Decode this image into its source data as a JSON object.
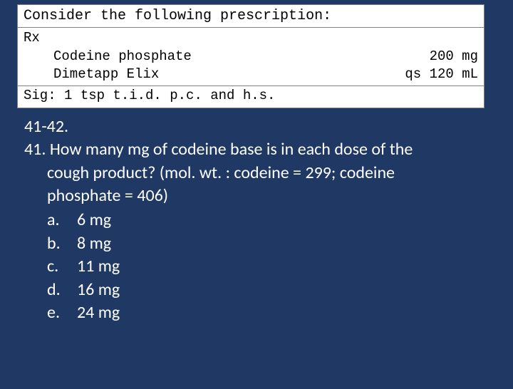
{
  "prescription": {
    "header": "Consider the following prescription:",
    "rx_label": "Rx",
    "ingredient1_name": "Codeine phosphate",
    "ingredient1_amount": "200 mg",
    "ingredient2_name": "Dimetapp Elix",
    "ingredient2_amount": "qs 120 mL",
    "sig": "Sig: 1 tsp t.i.d. p.c. and h.s."
  },
  "question": {
    "range": "41-42.",
    "stem_line1": "41. How many mg of codeine base is in each dose of the",
    "stem_line2": "cough product? (mol. wt. : codeine = 299; codeine",
    "stem_line3": "phosphate = 406)",
    "options": [
      {
        "letter": "a.",
        "text": "6 mg"
      },
      {
        "letter": "b.",
        "text": "8 mg"
      },
      {
        "letter": "c.",
        "text": "11 mg"
      },
      {
        "letter": "d.",
        "text": "16 mg"
      },
      {
        "letter": "e.",
        "text": "24 mg"
      }
    ]
  },
  "colors": {
    "background": "#1f3864",
    "box_bg": "#ffffff",
    "text_light": "#ffffff",
    "text_dark": "#000000",
    "border": "#808080"
  },
  "typography": {
    "box_font": "Courier New",
    "body_font": "Calibri",
    "box_fontsize": 19,
    "body_fontsize": 24
  }
}
